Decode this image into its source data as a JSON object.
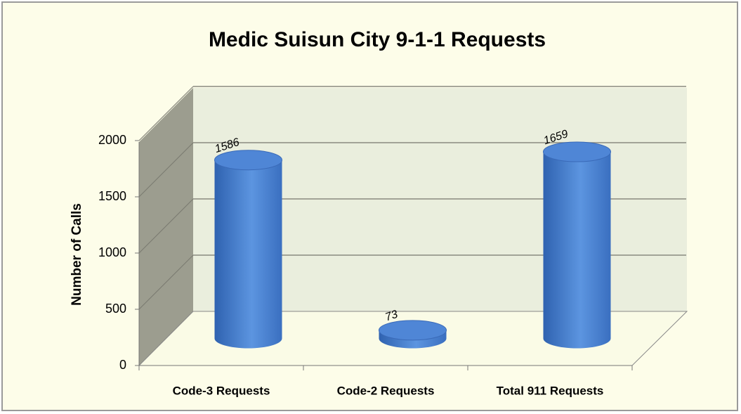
{
  "chart_data": {
    "type": "bar3d",
    "title": "Medic Suisun City 9-1-1 Requests",
    "y_label": "Number of Calls",
    "categories": [
      "Code-3 Requests",
      "Code-2 Requests",
      "Total 911 Requests"
    ],
    "values": [
      1586,
      73,
      1659
    ],
    "color": "#4f86d6",
    "ylim": [
      0,
      2000
    ],
    "yticks": [
      0,
      500,
      1000,
      1500,
      2000
    ],
    "grid": true
  }
}
